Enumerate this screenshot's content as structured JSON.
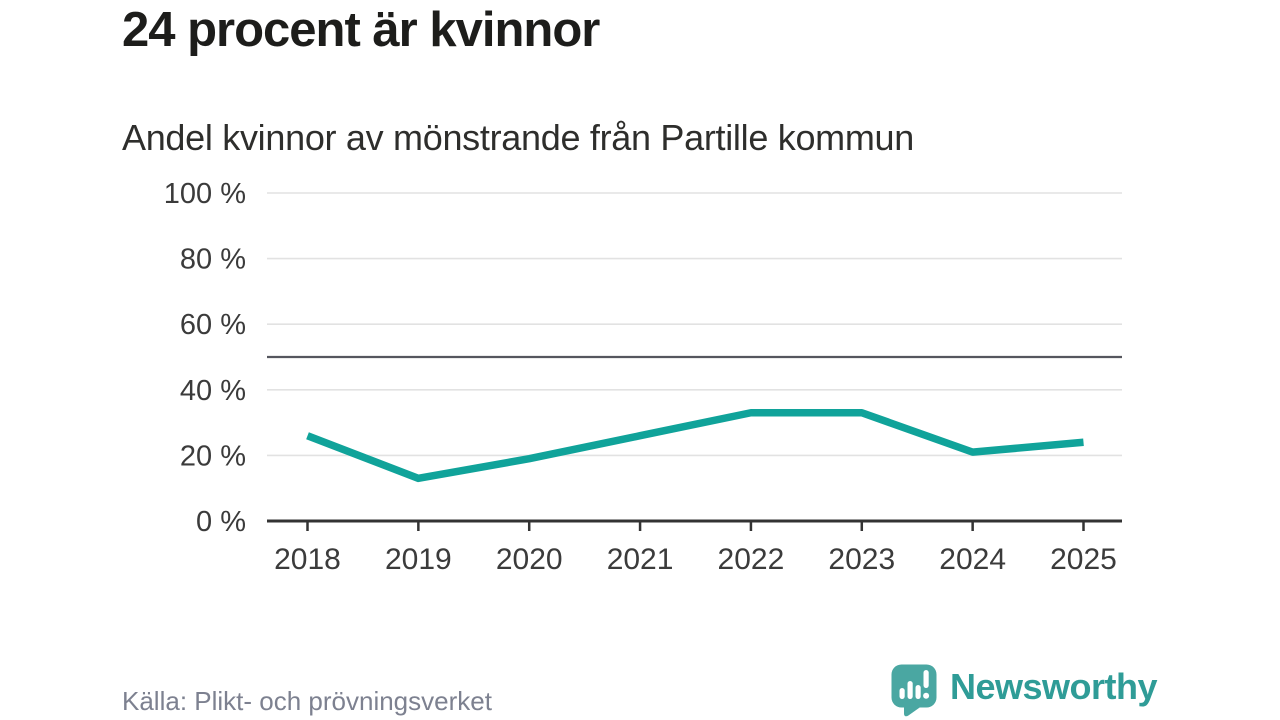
{
  "header": {
    "title": "24 procent är kvinnor",
    "subtitle": "Andel kvinnor av mönstrande från Partille kommun"
  },
  "footer": {
    "source": "Källa: Plikt- och prövningsverket",
    "brand": "Newsworthy"
  },
  "colors": {
    "line": "#10a39a",
    "grid": "#e2e2e2",
    "reference_line": "#55565e",
    "axis": "#333333",
    "axis_text": "#3b3b3b",
    "title": "#1d1d1b",
    "subtitle": "#2e2e2c",
    "source_text": "#7d8190",
    "logo_bubble": "#4aa7a2",
    "logo_text": "#2f9c97"
  },
  "chart_data": {
    "type": "line",
    "title": "24 procent är kvinnor",
    "subtitle": "Andel kvinnor av mönstrande från Partille kommun",
    "x": [
      2018,
      2019,
      2020,
      2021,
      2022,
      2023,
      2024,
      2025
    ],
    "series": [
      {
        "name": "Andel kvinnor av mönstrande (%)",
        "values": [
          26,
          13,
          19,
          26,
          33,
          33,
          21,
          24
        ]
      }
    ],
    "ylim": [
      0,
      100
    ],
    "yticks": [
      0,
      20,
      40,
      60,
      80,
      100
    ],
    "ytick_suffix": " %",
    "xlabel": "",
    "ylabel": "",
    "reference_line": 50,
    "grid": "horizontal",
    "legend": "none",
    "unit": "%"
  }
}
